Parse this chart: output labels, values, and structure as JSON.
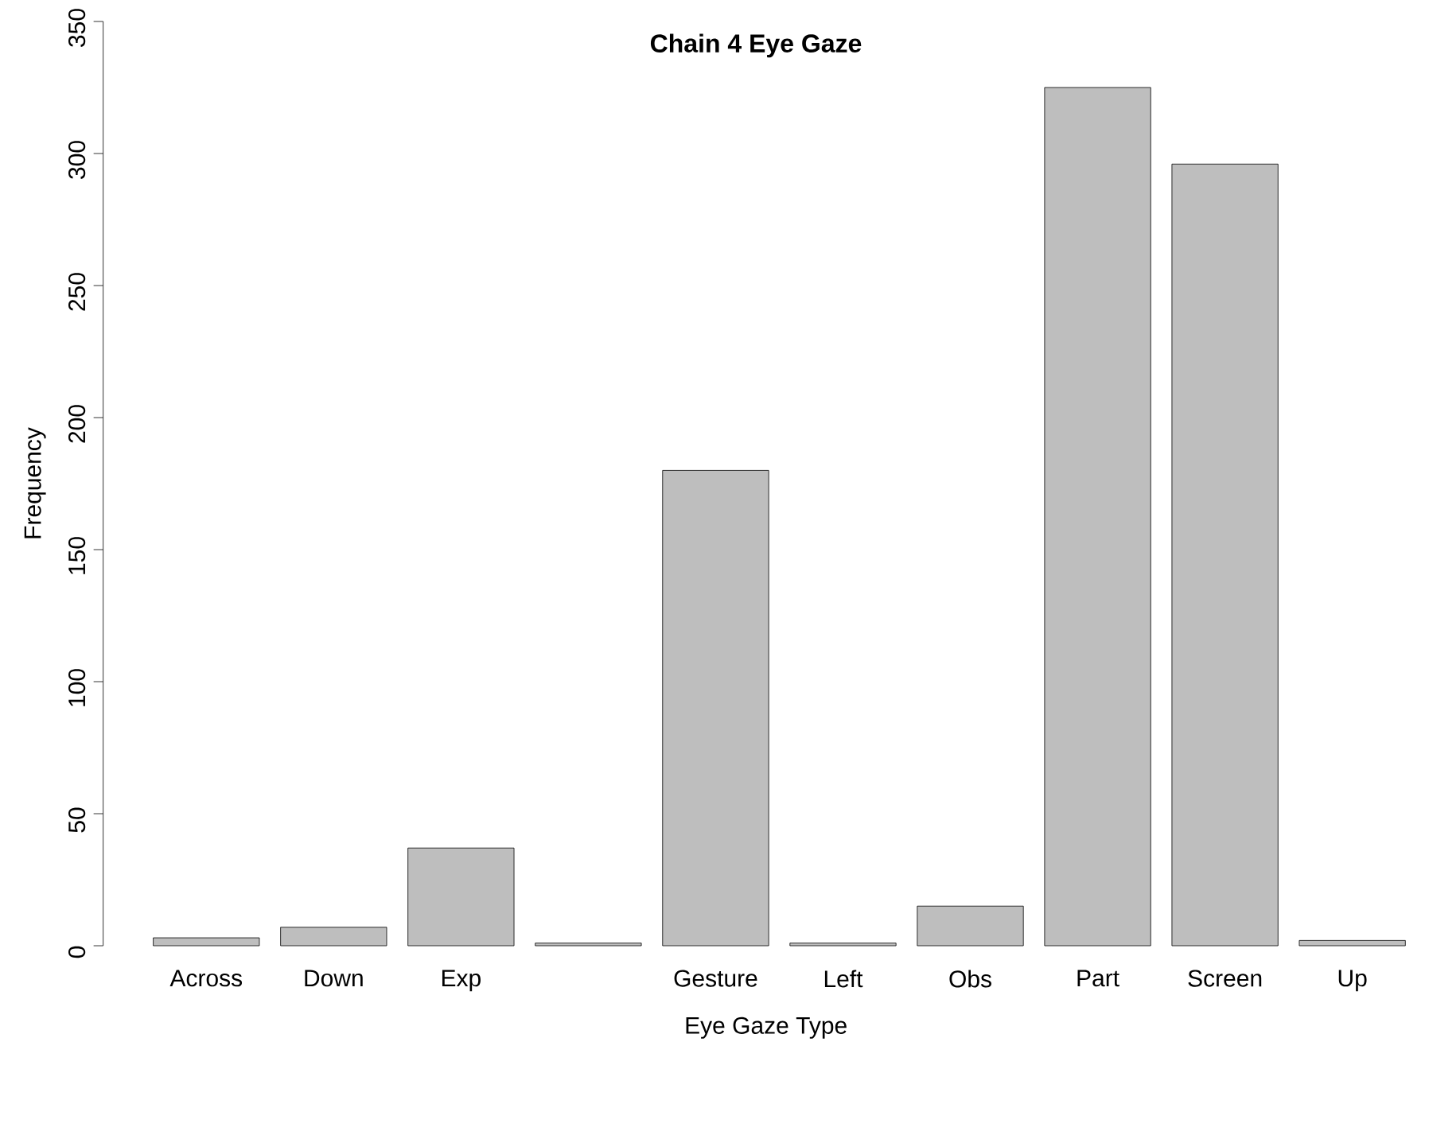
{
  "chart_data": {
    "type": "bar",
    "title": "Chain 4 Eye Gaze",
    "xlabel": "Eye Gaze Type",
    "ylabel": "Frequency",
    "categories": [
      "Across",
      "Down",
      "Exp",
      null,
      "Gesture",
      "Left",
      "Obs",
      "Part",
      "Screen",
      "Up"
    ],
    "values": [
      3,
      7,
      37,
      1,
      180,
      1,
      15,
      325,
      296,
      2
    ],
    "color": "#bebebe",
    "ylim": [
      0,
      350
    ],
    "yticks": [
      0,
      50,
      100,
      150,
      200,
      250,
      300,
      350
    ]
  }
}
